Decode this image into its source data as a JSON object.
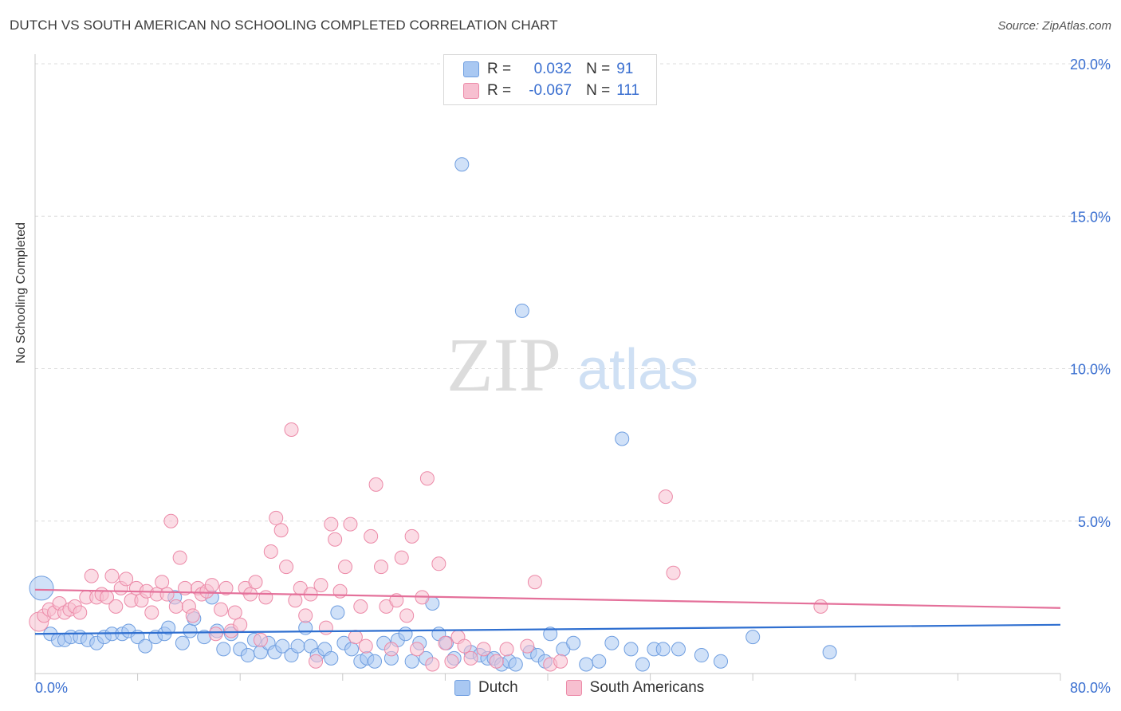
{
  "title": "DUTCH VS SOUTH AMERICAN NO SCHOOLING COMPLETED CORRELATION CHART",
  "source": "Source: ZipAtlas.com",
  "watermark": {
    "zip": "ZIP",
    "atlas": "atlas"
  },
  "legend": {
    "r_label": "R =",
    "n_label": "N =",
    "rows": [
      {
        "r": "0.032",
        "n": "91",
        "color": "#a9c8f2",
        "border": "#6f9ee0"
      },
      {
        "r": "-0.067",
        "n": "111",
        "color": "#f7bfd0",
        "border": "#ec8aa8"
      }
    ]
  },
  "chart_data": {
    "type": "scatter",
    "xlabel": "",
    "ylabel": "No Schooling Completed",
    "xlim": [
      0,
      80
    ],
    "ylim": [
      0,
      20
    ],
    "x_tick_labels": [
      "0.0%",
      "80.0%"
    ],
    "y_ticks": [
      5,
      10,
      15,
      20
    ],
    "y_tick_labels": [
      "5.0%",
      "10.0%",
      "15.0%",
      "20.0%"
    ],
    "series": [
      {
        "name": "Dutch",
        "color": "#a9c8f2",
        "stroke": "#6f9ee0",
        "trend": {
          "x0": 0,
          "y0": 1.3,
          "x1": 80,
          "y1": 1.6,
          "color": "#2f6fd0"
        },
        "points": [
          [
            0.5,
            2.8
          ],
          [
            1.2,
            1.3
          ],
          [
            1.8,
            1.1
          ],
          [
            2.3,
            1.1
          ],
          [
            2.8,
            1.2
          ],
          [
            3.5,
            1.2
          ],
          [
            4.1,
            1.1
          ],
          [
            4.8,
            1.0
          ],
          [
            5.4,
            1.2
          ],
          [
            6.0,
            1.3
          ],
          [
            6.8,
            1.3
          ],
          [
            7.3,
            1.4
          ],
          [
            8.0,
            1.2
          ],
          [
            8.6,
            0.9
          ],
          [
            9.4,
            1.2
          ],
          [
            10.1,
            1.3
          ],
          [
            10.4,
            1.5
          ],
          [
            10.9,
            2.5
          ],
          [
            11.5,
            1.0
          ],
          [
            12.1,
            1.4
          ],
          [
            12.4,
            1.8
          ],
          [
            13.2,
            1.2
          ],
          [
            13.8,
            2.5
          ],
          [
            14.2,
            1.4
          ],
          [
            14.7,
            0.8
          ],
          [
            15.3,
            1.3
          ],
          [
            16.0,
            0.8
          ],
          [
            16.6,
            0.6
          ],
          [
            17.1,
            1.1
          ],
          [
            17.6,
            0.7
          ],
          [
            18.2,
            1.0
          ],
          [
            18.7,
            0.7
          ],
          [
            19.3,
            0.9
          ],
          [
            20.0,
            0.6
          ],
          [
            20.5,
            0.9
          ],
          [
            21.1,
            1.5
          ],
          [
            21.5,
            0.9
          ],
          [
            22.0,
            0.6
          ],
          [
            22.6,
            0.8
          ],
          [
            23.1,
            0.5
          ],
          [
            23.6,
            2.0
          ],
          [
            24.1,
            1.0
          ],
          [
            24.7,
            0.8
          ],
          [
            25.4,
            0.4
          ],
          [
            25.9,
            0.5
          ],
          [
            26.5,
            0.4
          ],
          [
            27.2,
            1.0
          ],
          [
            27.8,
            0.5
          ],
          [
            28.3,
            1.1
          ],
          [
            28.9,
            1.3
          ],
          [
            29.4,
            0.4
          ],
          [
            30.0,
            1.0
          ],
          [
            30.5,
            0.5
          ],
          [
            31.0,
            2.3
          ],
          [
            31.5,
            1.3
          ],
          [
            32.1,
            1.0
          ],
          [
            32.7,
            0.5
          ],
          [
            33.3,
            16.7
          ],
          [
            34.0,
            0.7
          ],
          [
            34.7,
            0.6
          ],
          [
            35.3,
            0.5
          ],
          [
            35.8,
            0.5
          ],
          [
            36.4,
            0.3
          ],
          [
            37.0,
            0.4
          ],
          [
            37.5,
            0.3
          ],
          [
            38.0,
            11.9
          ],
          [
            38.6,
            0.7
          ],
          [
            39.2,
            0.6
          ],
          [
            39.8,
            0.4
          ],
          [
            40.2,
            1.3
          ],
          [
            41.2,
            0.8
          ],
          [
            42.0,
            1.0
          ],
          [
            43.0,
            0.3
          ],
          [
            44.0,
            0.4
          ],
          [
            45.0,
            1.0
          ],
          [
            45.8,
            7.7
          ],
          [
            46.5,
            0.8
          ],
          [
            47.4,
            0.3
          ],
          [
            48.3,
            0.8
          ],
          [
            49.0,
            0.8
          ],
          [
            50.2,
            0.8
          ],
          [
            52.0,
            0.6
          ],
          [
            53.5,
            0.4
          ],
          [
            56.0,
            1.2
          ],
          [
            62.0,
            0.7
          ]
        ]
      },
      {
        "name": "South Americans",
        "color": "#f7bfd0",
        "stroke": "#ec8aa8",
        "trend": {
          "x0": 0,
          "y0": 2.75,
          "x1": 80,
          "y1": 2.15,
          "color": "#e4709a"
        },
        "points": [
          [
            0.3,
            1.7
          ],
          [
            0.7,
            1.9
          ],
          [
            1.1,
            2.1
          ],
          [
            1.5,
            2.0
          ],
          [
            1.9,
            2.3
          ],
          [
            2.3,
            2.0
          ],
          [
            2.7,
            2.1
          ],
          [
            3.1,
            2.2
          ],
          [
            3.5,
            2.0
          ],
          [
            4.0,
            2.5
          ],
          [
            4.4,
            3.2
          ],
          [
            4.8,
            2.5
          ],
          [
            5.2,
            2.6
          ],
          [
            5.6,
            2.5
          ],
          [
            6.0,
            3.2
          ],
          [
            6.3,
            2.2
          ],
          [
            6.7,
            2.8
          ],
          [
            7.1,
            3.1
          ],
          [
            7.5,
            2.4
          ],
          [
            7.9,
            2.8
          ],
          [
            8.3,
            2.4
          ],
          [
            8.7,
            2.7
          ],
          [
            9.1,
            2.0
          ],
          [
            9.5,
            2.6
          ],
          [
            9.9,
            3.0
          ],
          [
            10.3,
            2.6
          ],
          [
            10.6,
            5.0
          ],
          [
            11.0,
            2.2
          ],
          [
            11.3,
            3.8
          ],
          [
            11.7,
            2.8
          ],
          [
            12.0,
            2.2
          ],
          [
            12.3,
            1.9
          ],
          [
            12.7,
            2.8
          ],
          [
            13.0,
            2.6
          ],
          [
            13.4,
            2.7
          ],
          [
            13.8,
            2.9
          ],
          [
            14.1,
            1.3
          ],
          [
            14.5,
            2.1
          ],
          [
            14.9,
            2.8
          ],
          [
            15.3,
            1.4
          ],
          [
            15.6,
            2.0
          ],
          [
            16.0,
            1.6
          ],
          [
            16.4,
            2.8
          ],
          [
            16.8,
            2.6
          ],
          [
            17.2,
            3.0
          ],
          [
            17.6,
            1.1
          ],
          [
            18.0,
            2.5
          ],
          [
            18.4,
            4.0
          ],
          [
            18.8,
            5.1
          ],
          [
            19.2,
            4.7
          ],
          [
            19.6,
            3.5
          ],
          [
            20.0,
            8.0
          ],
          [
            20.3,
            2.4
          ],
          [
            20.7,
            2.8
          ],
          [
            21.1,
            1.9
          ],
          [
            21.5,
            2.6
          ],
          [
            21.9,
            0.4
          ],
          [
            22.3,
            2.9
          ],
          [
            22.7,
            1.5
          ],
          [
            23.1,
            4.9
          ],
          [
            23.4,
            4.4
          ],
          [
            23.8,
            2.7
          ],
          [
            24.2,
            3.5
          ],
          [
            24.6,
            4.9
          ],
          [
            25.0,
            1.2
          ],
          [
            25.4,
            2.2
          ],
          [
            25.8,
            0.9
          ],
          [
            26.2,
            4.5
          ],
          [
            26.6,
            6.2
          ],
          [
            27.0,
            3.5
          ],
          [
            27.4,
            2.2
          ],
          [
            27.8,
            0.8
          ],
          [
            28.2,
            2.4
          ],
          [
            28.6,
            3.8
          ],
          [
            29.0,
            1.9
          ],
          [
            29.4,
            4.5
          ],
          [
            29.8,
            0.8
          ],
          [
            30.2,
            2.5
          ],
          [
            30.6,
            6.4
          ],
          [
            31.0,
            0.3
          ],
          [
            31.5,
            3.6
          ],
          [
            32.0,
            1.0
          ],
          [
            32.5,
            0.4
          ],
          [
            33.0,
            1.2
          ],
          [
            33.5,
            0.9
          ],
          [
            34.0,
            0.5
          ],
          [
            35.0,
            0.8
          ],
          [
            36.0,
            0.4
          ],
          [
            36.8,
            0.8
          ],
          [
            38.4,
            0.9
          ],
          [
            39.0,
            3.0
          ],
          [
            40.2,
            0.3
          ],
          [
            41.0,
            0.4
          ],
          [
            49.2,
            5.8
          ],
          [
            49.8,
            3.3
          ],
          [
            61.3,
            2.2
          ]
        ]
      }
    ]
  }
}
